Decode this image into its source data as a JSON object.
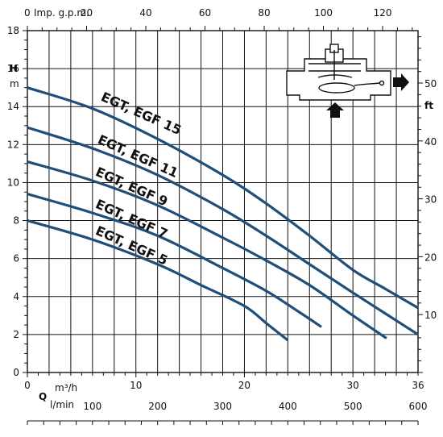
{
  "chart_data": {
    "type": "line",
    "title": "",
    "x_axis": {
      "label": "m³/h",
      "prefix": "Q",
      "range": [
        0,
        36
      ],
      "ticks": [
        0,
        10,
        20,
        30,
        36
      ],
      "tick_labels": [
        "0",
        "10",
        "20",
        "30",
        "36"
      ]
    },
    "y_axis": {
      "label_top": "H",
      "label_unit": "m",
      "range": [
        0,
        18
      ],
      "ticks": [
        0,
        2,
        4,
        6,
        8,
        10,
        12,
        14,
        16,
        18
      ],
      "tick_labels": [
        "0",
        "2",
        "4",
        "6",
        "8",
        "10",
        "12",
        "14",
        "16",
        "18"
      ]
    },
    "y_axis_right": {
      "label": "ft",
      "ticks": [
        10,
        20,
        30,
        40,
        50
      ],
      "tick_labels": [
        "10",
        "20",
        "30",
        "40",
        "50"
      ]
    },
    "x_axis_top": {
      "label": "Imp. g.p.m.",
      "ticks": [
        0,
        20,
        40,
        60,
        80,
        100,
        120
      ],
      "tick_labels": [
        "0",
        "20",
        "40",
        "60",
        "80",
        "100",
        "120"
      ]
    },
    "x_axis_bottom2": {
      "label": "l/min",
      "ticks": [
        100,
        200,
        300,
        400,
        500,
        600
      ],
      "tick_labels": [
        "100",
        "200",
        "300",
        "400",
        "500",
        "600"
      ]
    },
    "grid": true,
    "series": [
      {
        "name": "EGT, EGF 15",
        "color": "#1f4e79",
        "x": [
          0,
          6,
          12,
          18,
          22,
          26,
          30,
          33,
          36
        ],
        "y": [
          15,
          13.9,
          12.3,
          10.4,
          8.9,
          7.2,
          5.4,
          4.4,
          3.4
        ]
      },
      {
        "name": "EGT, EGF 11",
        "color": "#1f4e79",
        "x": [
          0,
          6,
          12,
          18,
          22,
          26,
          30,
          33,
          36
        ],
        "y": [
          12.9,
          11.8,
          10.4,
          8.6,
          7.2,
          5.7,
          4.2,
          3.1,
          2.0
        ]
      },
      {
        "name": "EGT, EGF 9",
        "color": "#1f4e79",
        "x": [
          0,
          6,
          12,
          18,
          22,
          26,
          30,
          33.1
        ],
        "y": [
          11.1,
          10.1,
          8.8,
          7.1,
          5.9,
          4.6,
          3.0,
          1.8
        ]
      },
      {
        "name": "EGT, EGF 7",
        "color": "#1f4e79",
        "x": [
          0,
          6,
          12,
          18,
          22,
          25,
          27.1
        ],
        "y": [
          9.4,
          8.4,
          7.2,
          5.5,
          4.3,
          3.2,
          2.4
        ]
      },
      {
        "name": "EGT, EGF 5",
        "color": "#1f4e79",
        "x": [
          0,
          6,
          12,
          16,
          20,
          22,
          24
        ],
        "y": [
          8.0,
          7.0,
          5.7,
          4.6,
          3.5,
          2.6,
          1.7
        ]
      }
    ]
  },
  "icons": {
    "pump_diagram": "pump-schematic-icon"
  }
}
